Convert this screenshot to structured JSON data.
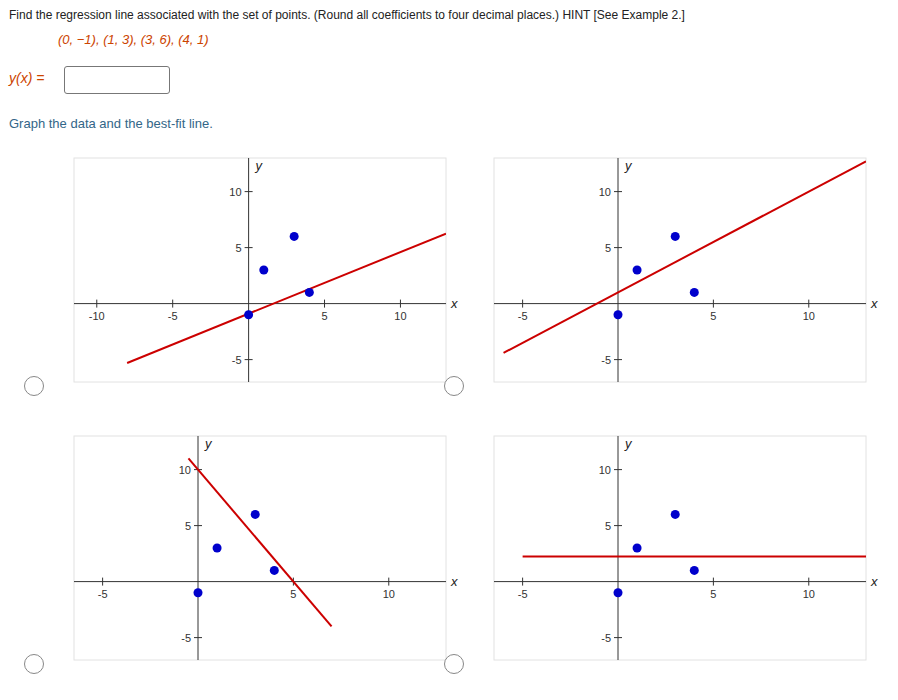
{
  "title": "Find the regression line associated with the set of points. (Round all coefficients to four decimal places.) HINT [See Example 2.]",
  "subtitle": "(0, −1), (1, 3), (3, 6), (4, 1)",
  "annotations": [
    "y(x) =",
    "Graph the data and the best-fit line."
  ],
  "chart_data": [
    {
      "type": "scatter",
      "xlabel": "x",
      "ylabel": "y",
      "grid": false,
      "xlim": [
        -11.5,
        13
      ],
      "ylim": [
        -7,
        13
      ],
      "xticks": [
        -10,
        -5,
        5,
        10
      ],
      "yticks": [
        -5,
        5,
        10
      ],
      "series": [
        {
          "type": "scatter",
          "color": "#0000cc",
          "x": [
            0,
            1,
            3,
            4
          ],
          "values": [
            -1,
            3,
            6,
            1
          ]
        },
        {
          "type": "line",
          "color": "#cc0000",
          "x": [
            -8,
            13
          ],
          "values": [
            -5.3,
            6.25
          ]
        }
      ]
    },
    {
      "type": "scatter",
      "xlabel": "x",
      "ylabel": "y",
      "grid": false,
      "xlim": [
        -6.5,
        13
      ],
      "ylim": [
        -7,
        13
      ],
      "xticks": [
        -5,
        5,
        10
      ],
      "yticks": [
        -5,
        5,
        10
      ],
      "series": [
        {
          "type": "scatter",
          "color": "#0000cc",
          "x": [
            0,
            1,
            3,
            4
          ],
          "values": [
            -1,
            3,
            6,
            1
          ]
        },
        {
          "type": "line",
          "color": "#cc0000",
          "x": [
            -6,
            13
          ],
          "values": [
            -4.4,
            12.7
          ]
        }
      ]
    },
    {
      "type": "scatter",
      "xlabel": "x",
      "ylabel": "y",
      "grid": false,
      "xlim": [
        -6.5,
        13
      ],
      "ylim": [
        -7,
        13
      ],
      "xticks": [
        -5,
        5,
        10
      ],
      "yticks": [
        -5,
        5,
        10
      ],
      "series": [
        {
          "type": "scatter",
          "color": "#0000cc",
          "x": [
            0,
            1,
            3,
            4
          ],
          "values": [
            -1,
            3,
            6,
            1
          ]
        },
        {
          "type": "line",
          "color": "#cc0000",
          "x": [
            -0.5,
            7.0
          ],
          "values": [
            11,
            -4
          ]
        }
      ]
    },
    {
      "type": "scatter",
      "xlabel": "x",
      "ylabel": "y",
      "grid": false,
      "xlim": [
        -6.5,
        13
      ],
      "ylim": [
        -7,
        13
      ],
      "xticks": [
        -5,
        5,
        10
      ],
      "yticks": [
        -5,
        5,
        10
      ],
      "series": [
        {
          "type": "scatter",
          "color": "#0000cc",
          "x": [
            0,
            1,
            3,
            4
          ],
          "values": [
            -1,
            3,
            6,
            1
          ]
        },
        {
          "type": "line",
          "color": "#cc0000",
          "x": [
            -5,
            13
          ],
          "values": [
            2.25,
            2.25
          ]
        }
      ]
    }
  ]
}
